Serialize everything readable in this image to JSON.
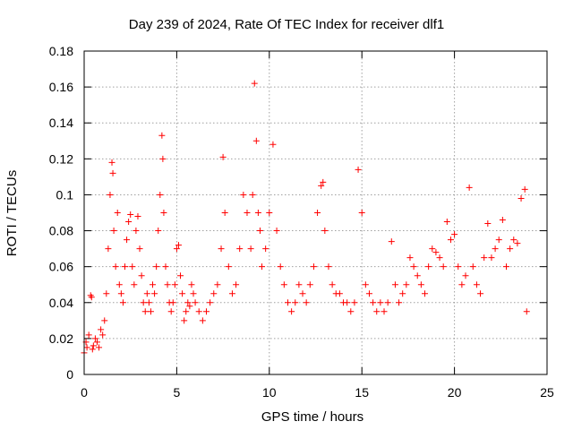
{
  "chart_data": {
    "type": "scatter",
    "title": "Day 239 of 2024, Rate Of TEC Index for receiver dlf1",
    "xlabel": "GPS time / hours",
    "ylabel": "ROTI / TECUs",
    "xlim": [
      0,
      25
    ],
    "ylim": [
      0,
      0.18
    ],
    "xticks": [
      "0",
      "5",
      "10",
      "15",
      "20",
      "25"
    ],
    "yticks": [
      "0",
      "0.02",
      "0.04",
      "0.06",
      "0.08",
      "0.1",
      "0.12",
      "0.14",
      "0.16",
      "0.18"
    ],
    "grid": true,
    "marker": "+",
    "marker_color": "#ff0000",
    "series": [
      {
        "x": [
          0.0,
          0.1,
          0.15,
          0.25,
          0.35,
          0.4,
          0.45,
          0.5,
          0.6,
          0.7,
          0.8,
          0.9,
          1.0,
          1.1,
          1.2,
          1.3,
          1.4,
          1.5,
          1.55,
          1.6,
          1.7,
          1.8,
          1.9,
          2.0,
          2.1,
          2.2,
          2.3,
          2.4,
          2.5,
          2.6,
          2.7,
          2.8,
          2.9,
          3.0,
          3.1,
          3.2,
          3.3,
          3.4,
          3.5,
          3.6,
          3.7,
          3.8,
          3.9,
          4.0,
          4.1,
          4.2,
          4.25,
          4.3,
          4.4,
          4.5,
          4.6,
          4.7,
          4.8,
          4.9,
          5.0,
          5.1,
          5.2,
          5.3,
          5.4,
          5.5,
          5.6,
          5.7,
          5.8,
          5.9,
          6.0,
          6.2,
          6.4,
          6.6,
          6.8,
          7.0,
          7.2,
          7.4,
          7.5,
          7.6,
          7.8,
          8.0,
          8.2,
          8.4,
          8.6,
          8.8,
          9.0,
          9.1,
          9.2,
          9.3,
          9.4,
          9.5,
          9.6,
          9.8,
          10.0,
          10.2,
          10.4,
          10.6,
          10.8,
          11.0,
          11.2,
          11.4,
          11.6,
          11.8,
          12.0,
          12.2,
          12.4,
          12.6,
          12.8,
          12.9,
          13.0,
          13.2,
          13.4,
          13.6,
          13.8,
          14.0,
          14.2,
          14.4,
          14.6,
          14.8,
          15.0,
          15.2,
          15.4,
          15.6,
          15.8,
          16.0,
          16.2,
          16.4,
          16.6,
          16.8,
          17.0,
          17.2,
          17.4,
          17.6,
          17.8,
          18.0,
          18.2,
          18.4,
          18.6,
          18.8,
          19.0,
          19.2,
          19.4,
          19.6,
          19.8,
          20.0,
          20.2,
          20.4,
          20.6,
          20.8,
          21.0,
          21.2,
          21.4,
          21.6,
          21.8,
          22.0,
          22.2,
          22.4,
          22.6,
          22.8,
          23.0,
          23.2,
          23.4,
          23.6,
          23.8,
          23.9
        ],
        "y": [
          0.012,
          0.018,
          0.015,
          0.022,
          0.044,
          0.043,
          0.014,
          0.016,
          0.02,
          0.018,
          0.015,
          0.025,
          0.022,
          0.03,
          0.045,
          0.07,
          0.1,
          0.118,
          0.112,
          0.08,
          0.06,
          0.09,
          0.05,
          0.045,
          0.04,
          0.06,
          0.075,
          0.085,
          0.089,
          0.06,
          0.05,
          0.08,
          0.088,
          0.07,
          0.055,
          0.04,
          0.035,
          0.045,
          0.04,
          0.035,
          0.05,
          0.045,
          0.06,
          0.08,
          0.1,
          0.133,
          0.12,
          0.09,
          0.06,
          0.05,
          0.04,
          0.035,
          0.04,
          0.05,
          0.07,
          0.072,
          0.055,
          0.045,
          0.03,
          0.035,
          0.04,
          0.038,
          0.05,
          0.045,
          0.04,
          0.035,
          0.03,
          0.035,
          0.04,
          0.045,
          0.05,
          0.07,
          0.121,
          0.09,
          0.06,
          0.045,
          0.05,
          0.07,
          0.1,
          0.09,
          0.07,
          0.1,
          0.162,
          0.13,
          0.09,
          0.08,
          0.06,
          0.07,
          0.09,
          0.128,
          0.08,
          0.06,
          0.05,
          0.04,
          0.035,
          0.04,
          0.05,
          0.045,
          0.04,
          0.05,
          0.06,
          0.09,
          0.105,
          0.107,
          0.08,
          0.06,
          0.05,
          0.045,
          0.045,
          0.04,
          0.04,
          0.035,
          0.04,
          0.114,
          0.09,
          0.05,
          0.045,
          0.04,
          0.035,
          0.04,
          0.035,
          0.04,
          0.074,
          0.05,
          0.04,
          0.045,
          0.05,
          0.065,
          0.06,
          0.055,
          0.05,
          0.045,
          0.06,
          0.07,
          0.068,
          0.065,
          0.06,
          0.085,
          0.075,
          0.078,
          0.06,
          0.05,
          0.055,
          0.104,
          0.06,
          0.05,
          0.045,
          0.065,
          0.084,
          0.065,
          0.07,
          0.075,
          0.086,
          0.06,
          0.07,
          0.075,
          0.073,
          0.098,
          0.103,
          0.035
        ]
      }
    ]
  }
}
